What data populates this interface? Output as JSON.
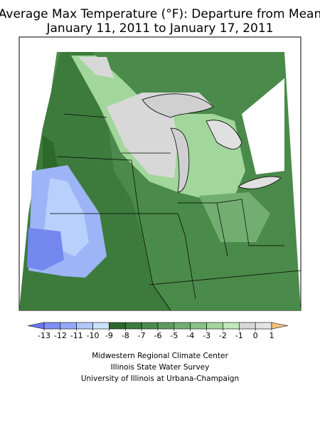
{
  "header": {
    "title_line1": "Average Max Temperature (°F): Departure from Mean",
    "title_line2": "January 11, 2011 to January 17, 2011"
  },
  "colorbar": {
    "ticks": [
      -13,
      -12,
      -11,
      -10,
      -9,
      -8,
      -7,
      -6,
      -5,
      -4,
      -3,
      -2,
      -1,
      0,
      1
    ],
    "colors": [
      "#6a78ee",
      "#7e90f4",
      "#95aaf8",
      "#b0c8fc",
      "#cbe2fc",
      "#2c6a2c",
      "#3c7b3c",
      "#4c8c4c",
      "#5e9c5e",
      "#72ae72",
      "#88c284",
      "#a2d69c",
      "#bfe8b6",
      "#d8d8d8",
      "#e4e4e4",
      "#f2c27a"
    ]
  },
  "credits": [
    "Midwestern Regional Climate Center",
    "Illinois State Water Survey",
    "University of Illinois at Urbana-Champaign"
  ]
}
